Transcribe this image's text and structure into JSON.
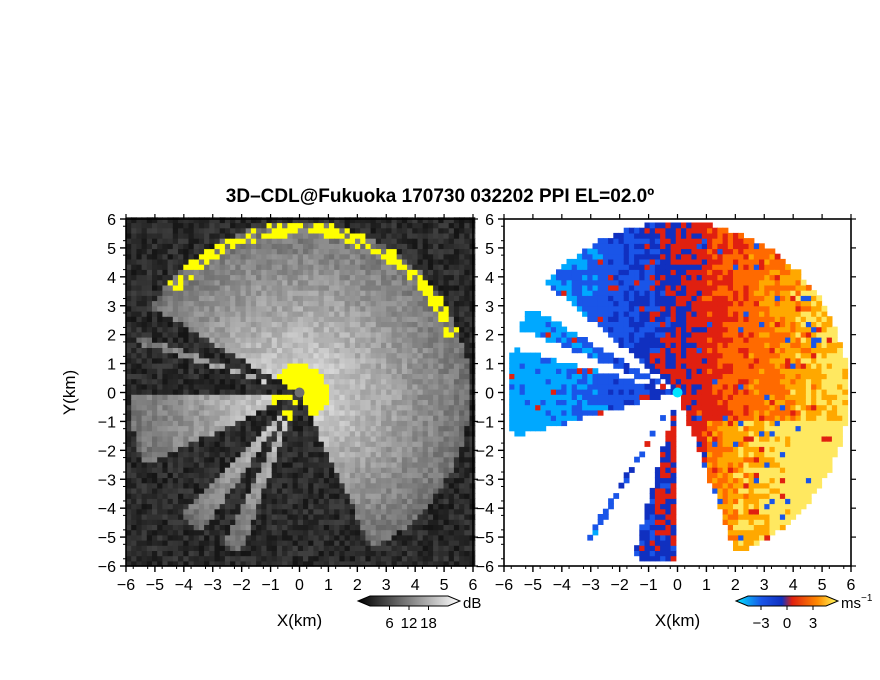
{
  "title": "3D–CDL@Fukuoka 170730 032202 PPI EL=02.0º",
  "chart_data": [
    {
      "type": "heatmap",
      "panel": "left",
      "quantity": "SNR",
      "xlabel": "X(km)",
      "ylabel": "Y(km)",
      "xlim": [
        -6,
        6
      ],
      "ylim": [
        -6,
        6
      ],
      "xticks": [
        "−6",
        "−5",
        "−4",
        "−3",
        "−2",
        "−1",
        "0",
        "1",
        "2",
        "3",
        "4",
        "5",
        "6"
      ],
      "yticks": [
        "6",
        "5",
        "4",
        "3",
        "2",
        "1",
        "0",
        "−1",
        "−2",
        "−3",
        "−4",
        "−5",
        "−6"
      ],
      "colorbar": {
        "unit": "dB",
        "ticks": [
          "6",
          "12",
          "18"
        ],
        "tick_values": [
          6,
          12,
          18
        ],
        "range": [
          0,
          24
        ],
        "colormap": "grayscale"
      },
      "highlight_color": "#ffff00",
      "blocked_sectors_deg": [
        [
          150,
          160
        ],
        [
          163,
          180
        ],
        [
          205,
          225
        ],
        [
          235,
          243
        ],
        [
          250,
          295
        ]
      ],
      "max_range_km": 5.9
    },
    {
      "type": "heatmap",
      "panel": "right",
      "quantity": "Doppler velocity",
      "xlabel": "X(km)",
      "xlim": [
        -6,
        6
      ],
      "ylim": [
        -6,
        6
      ],
      "xticks": [
        "−6",
        "−5",
        "−4",
        "−3",
        "−2",
        "−1",
        "0",
        "1",
        "2",
        "3",
        "4",
        "5",
        "6"
      ],
      "yticks": [
        "6",
        "5",
        "4",
        "3",
        "2",
        "1",
        "0",
        "−1",
        "−2",
        "−3",
        "−4",
        "−5",
        "−6"
      ],
      "colorbar": {
        "unit": "ms",
        "unit_exponent": "−1",
        "ticks": [
          "−3",
          "0",
          "3"
        ],
        "tick_values": [
          -3,
          0,
          3
        ],
        "range": [
          -4.5,
          4.5
        ],
        "colormap": "blue-red"
      }
    }
  ]
}
